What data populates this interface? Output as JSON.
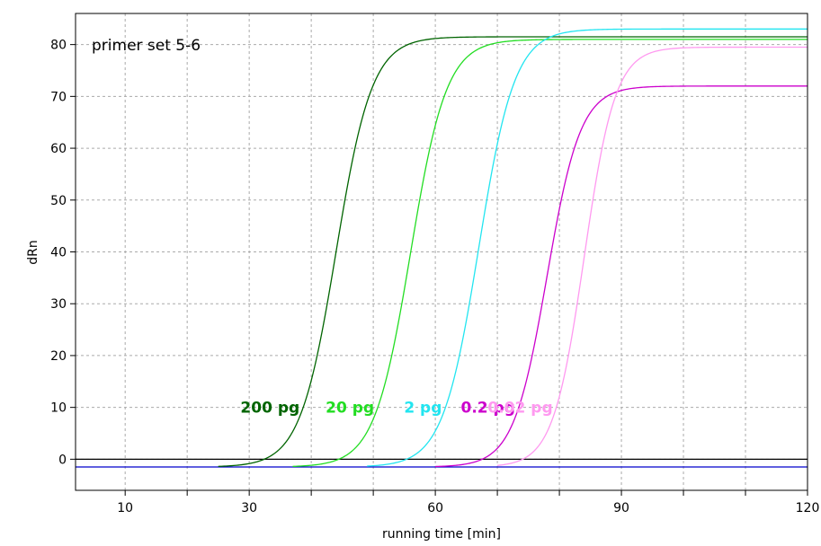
{
  "colors": {
    "grid": "#aaaaaa",
    "frame": "#000000",
    "background": "#ffffff",
    "zero_line": "#000000",
    "baseline_series": "#0000cc"
  },
  "chart_data": {
    "type": "line",
    "title": "",
    "annotation": "primer set 5-6",
    "xlabel": "running time [min]",
    "ylabel": "dRn",
    "xlim": [
      2,
      120
    ],
    "ylim": [
      -6,
      86
    ],
    "x_major_ticks": [
      10,
      30,
      60,
      90,
      120
    ],
    "x_minor_ticks": [
      20,
      40,
      50,
      70,
      80,
      100,
      110
    ],
    "y_ticks": [
      0,
      10,
      20,
      30,
      40,
      50,
      60,
      70,
      80
    ],
    "grid": true,
    "legend": "none",
    "reference_lines": [
      {
        "y": 0,
        "color": "#000000"
      },
      {
        "y": -1.5,
        "color": "#0000cc"
      }
    ],
    "series": [
      {
        "name": "200 pg",
        "color": "#006400",
        "start_x": 25,
        "baseline": -1.5,
        "plateau": 81.5,
        "midpoint": 44,
        "slope": 2.9,
        "x": [
          25,
          30,
          35,
          40,
          44,
          48,
          53,
          58,
          63,
          70,
          80,
          90,
          100,
          110,
          120
        ],
        "y": [
          -1.4,
          0.5,
          10,
          30,
          40,
          62,
          74,
          79,
          80.5,
          81.3,
          81.5,
          81.5,
          81.5,
          81.5,
          81.5
        ]
      },
      {
        "name": "20 pg",
        "color": "#22dd22",
        "start_x": 37,
        "baseline": -1.5,
        "plateau": 81,
        "midpoint": 56,
        "slope": 2.9,
        "x": [
          37,
          42,
          47,
          52,
          56,
          60,
          65,
          70,
          75,
          80,
          90,
          100,
          110,
          120
        ],
        "y": [
          -1.4,
          0.5,
          10,
          30,
          40,
          62,
          74,
          78.5,
          80,
          80.7,
          81,
          81,
          81,
          81
        ]
      },
      {
        "name": "2 pg",
        "color": "#22e5f0",
        "start_x": 49,
        "baseline": -1.5,
        "plateau": 83,
        "midpoint": 67,
        "slope": 2.9,
        "x": [
          49,
          54,
          59,
          64,
          67,
          71,
          76,
          81,
          86,
          90,
          100,
          110,
          120
        ],
        "y": [
          -1.4,
          0.5,
          10,
          30,
          40,
          62,
          75,
          80,
          82,
          82.7,
          83,
          83,
          83
        ]
      },
      {
        "name": "0.2 pg",
        "color": "#cc00cc",
        "start_x": 60,
        "baseline": -1.5,
        "plateau": 72,
        "midpoint": 78,
        "slope": 2.7,
        "x": [
          60,
          65,
          70,
          75,
          78,
          82,
          87,
          92,
          97,
          100,
          110,
          120
        ],
        "y": [
          -1.4,
          0.5,
          9,
          27,
          35,
          55,
          65,
          70,
          71.5,
          71.8,
          72,
          72
        ]
      },
      {
        "name": "0.02 pg",
        "color": "#ff99f0",
        "start_x": 70,
        "baseline": -1.5,
        "plateau": 79.5,
        "midpoint": 84,
        "slope": 2.5,
        "x": [
          70,
          75,
          79,
          82,
          84,
          87,
          91,
          95,
          100,
          105,
          110,
          120
        ],
        "y": [
          -1.4,
          1,
          12,
          30,
          39,
          58,
          70,
          75,
          78,
          79,
          79.4,
          79.5
        ]
      }
    ],
    "series_label_y": 10
  }
}
